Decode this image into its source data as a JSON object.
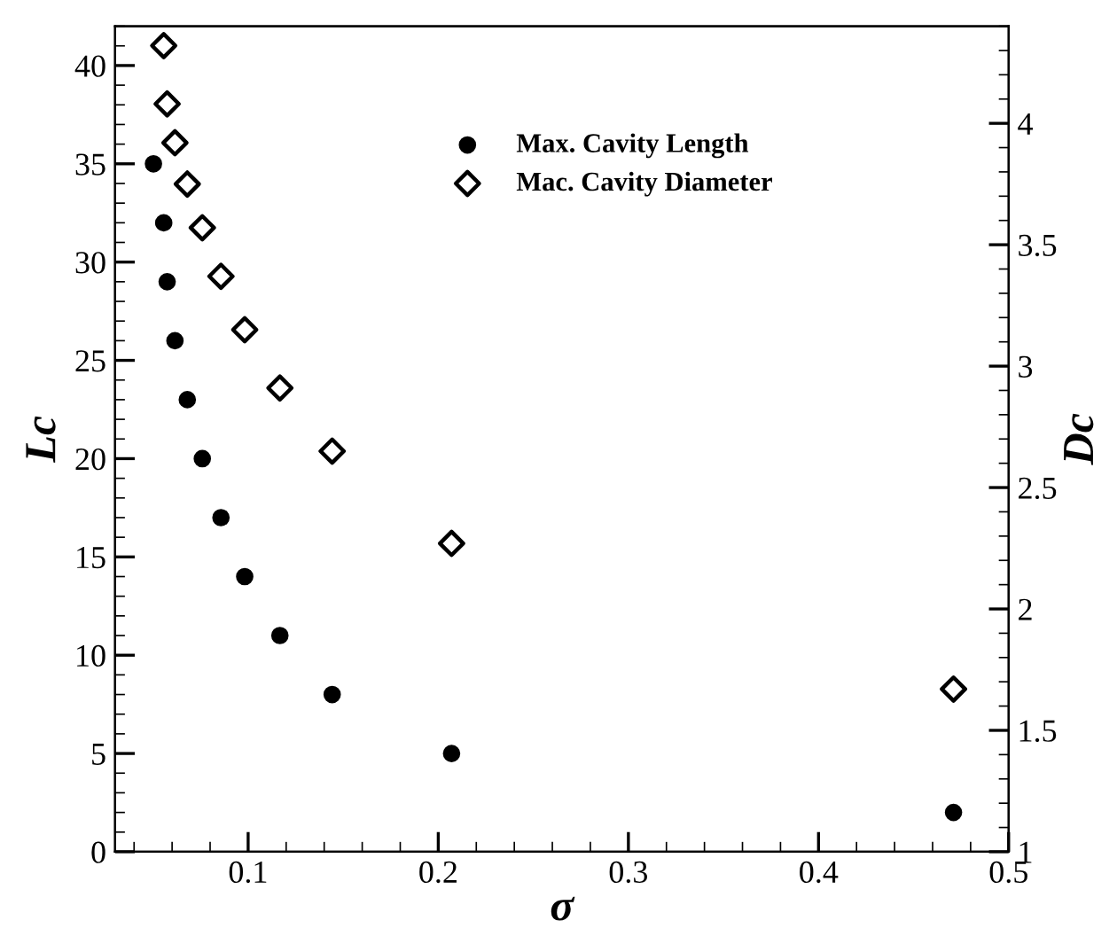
{
  "chart_data": {
    "type": "scatter",
    "xlabel": "σ",
    "ylabel": "Lc",
    "y2label": "Dc",
    "xlim": [
      0.03,
      0.5
    ],
    "xticks": [
      0.1,
      0.2,
      0.3,
      0.4,
      0.5
    ],
    "ylim": [
      0,
      42
    ],
    "yticks": [
      0,
      5,
      10,
      15,
      20,
      25,
      30,
      35,
      40
    ],
    "y2lim": [
      1,
      4.4
    ],
    "y2ticks": [
      1,
      1.5,
      2,
      2.5,
      3,
      3.5,
      4
    ],
    "legend": "top",
    "grid": false,
    "series": [
      {
        "name": "Max. Cavity Length",
        "color": "#000000",
        "marker": "circle",
        "x": [
          0.0502,
          0.0556,
          0.0574,
          0.0615,
          0.068,
          0.0759,
          0.0857,
          0.0982,
          0.1167,
          0.1442,
          0.207,
          0.471
        ],
        "values": [
          35,
          32,
          29,
          26,
          23,
          20,
          17,
          14,
          11,
          8,
          5,
          2
        ]
      },
      {
        "name": "Mac. Cavity Diameter",
        "color": "#000000",
        "marker": "diamond",
        "axis": "y2",
        "x": [
          0.0556,
          0.0574,
          0.0615,
          0.068,
          0.0759,
          0.0857,
          0.0982,
          0.1167,
          0.1442,
          0.207,
          0.471
        ],
        "values": [
          4.32,
          4.08,
          3.92,
          3.75,
          3.57,
          3.37,
          3.15,
          2.91,
          2.65,
          2.27,
          1.67
        ]
      }
    ]
  }
}
